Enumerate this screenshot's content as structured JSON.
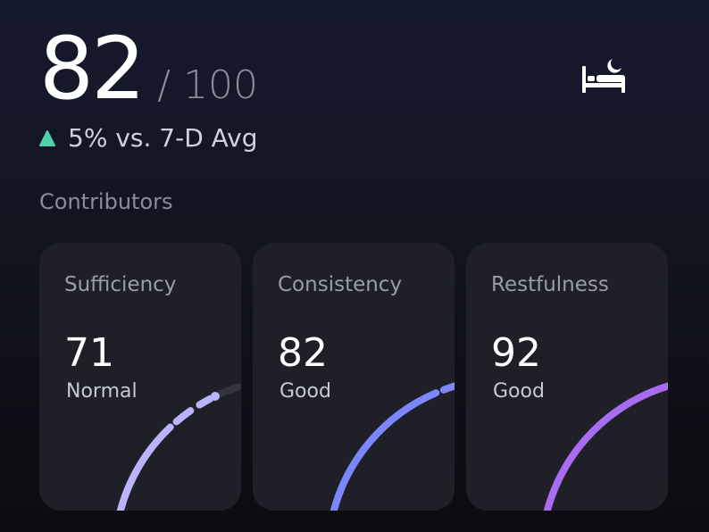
{
  "score": {
    "value": "82",
    "total": "/ 100",
    "trend_text": "5% vs. 7-D Avg",
    "trend_color": "#4fd1a6"
  },
  "header": {
    "icon": "bed-moon-icon"
  },
  "contributors": {
    "label": "Contributors",
    "items": [
      {
        "title": "Sufficiency",
        "value": 71,
        "status": "Normal",
        "color": "#b9b4ff",
        "level": 0.55
      },
      {
        "title": "Consistency",
        "value": 82,
        "status": "Good",
        "color": "#7c86ff",
        "level": 0.78
      },
      {
        "title": "Restfulness",
        "value": 92,
        "status": "Good",
        "color": "#a86cf0",
        "level": 0.94
      }
    ]
  }
}
